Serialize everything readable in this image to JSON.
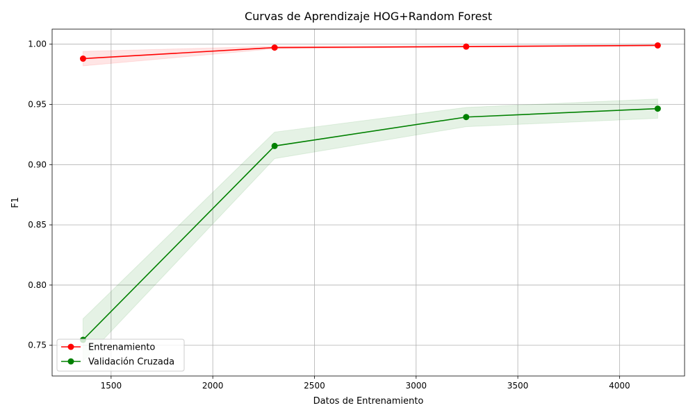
{
  "chart_data": {
    "type": "line",
    "title": "Curvas de Aprendizaje HOG+Random Forest",
    "xlabel": "Datos de Entrenamiento",
    "ylabel": "F1",
    "xlim": [
      1210,
      4320
    ],
    "ylim": [
      0.7245,
      1.0125
    ],
    "xticks": [
      1500,
      2000,
      2500,
      3000,
      3500,
      4000
    ],
    "xtick_labels": [
      "1500",
      "2000",
      "2500",
      "3000",
      "3500",
      "4000"
    ],
    "yticks": [
      0.75,
      0.8,
      0.85,
      0.9,
      0.95,
      1.0
    ],
    "ytick_labels": [
      "0.75",
      "0.80",
      "0.85",
      "0.90",
      "0.95",
      "1.00"
    ],
    "grid": true,
    "legend_position": "lower-left",
    "x": [
      1362,
      2304,
      3246,
      4188
    ],
    "series": [
      {
        "name": "Entrenamiento",
        "color": "#ff0000",
        "band_color": "#ff0000",
        "values": [
          0.988,
          0.9972,
          0.998,
          0.999
        ],
        "lower": [
          0.982,
          0.9962,
          0.9975,
          0.9985
        ],
        "upper": [
          0.994,
          0.9982,
          0.9985,
          0.9995
        ]
      },
      {
        "name": "Validación Cruzada",
        "color": "#008000",
        "band_color": "#008000",
        "values": [
          0.7545,
          0.9155,
          0.9395,
          0.9465
        ],
        "lower": [
          0.737,
          0.905,
          0.9315,
          0.9385
        ],
        "upper": [
          0.772,
          0.927,
          0.9475,
          0.9545
        ]
      }
    ]
  }
}
